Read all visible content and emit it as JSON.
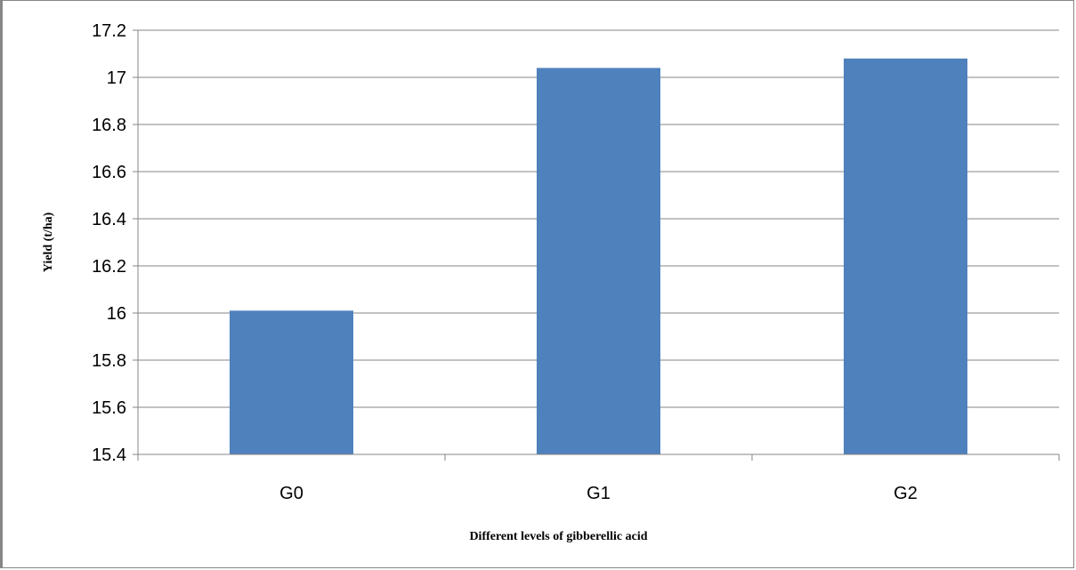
{
  "chart_data": {
    "type": "bar",
    "categories": [
      "G0",
      "G1",
      "G2"
    ],
    "values": [
      16.01,
      17.04,
      17.08
    ],
    "ylim": [
      15.4,
      17.2
    ],
    "yticks": [
      "15.4",
      "15.6",
      "15.8",
      "16",
      "16.2",
      "16.4",
      "16.6",
      "16.8",
      "17",
      "17.2"
    ],
    "xlabel": "Different levels  of gibberellic acid",
    "ylabel": "Yield (t/ha)",
    "grid": true,
    "legend": "none",
    "bar_color": "#4F81BD",
    "grid_color": "#868686"
  }
}
